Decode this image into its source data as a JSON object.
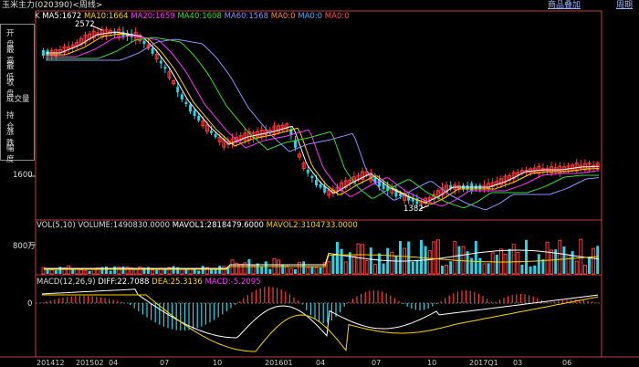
{
  "titlebar": {
    "title": "玉米主力(020390)<周线>",
    "menu_add": "商品叠加",
    "menu_period": "周期"
  },
  "main_legend": {
    "prefix": "K",
    "ma5": "MA5:1672",
    "ma10": "MA10:1664",
    "ma20": "MA20:1659",
    "ma40": "MA40:1608",
    "ma60": "MA60:1568",
    "ma_a": "MA0:0",
    "ma_b": "MA0:0",
    "ma_c": "MA0:0"
  },
  "info_box": {
    "rows": [
      "开 盘",
      "最 高",
      "最 低",
      "收 盘",
      "成交量",
      "持 仓",
      "涨 跌",
      "幅 度"
    ]
  },
  "price_axis": {
    "label_1600": "1600",
    "high_annotation": "2572",
    "low_annotation": "1382"
  },
  "volume_legend": {
    "title": "VOL(5,10) VOLUME:1490830.0000",
    "mavol1": "MAVOL1:2818479.6000",
    "mavol2": "MAVOL2:3104733.0000"
  },
  "volume_axis": {
    "label_800w": "800万"
  },
  "macd_legend": {
    "title": "MACD(12,26,9)",
    "diff": "DIFF:22.7088",
    "dea": "DEA:25.3136",
    "macd": "MACD:-5.2095"
  },
  "macd_axis": {
    "label_0": "0"
  },
  "x_axis": {
    "ticks": [
      "201412",
      "201502",
      "04",
      "07",
      "10",
      "201601",
      "04",
      "07",
      "10",
      "2017Q1",
      "03",
      "06"
    ]
  },
  "colors": {
    "up": "#ff3b3b",
    "down": "#27d3e4",
    "ma5": "#ffffff",
    "ma10": "#ffd400",
    "ma20": "#ff33ff",
    "ma40": "#33dd33",
    "ma60": "#8f8fff",
    "frame": "#c83a3a"
  }
}
